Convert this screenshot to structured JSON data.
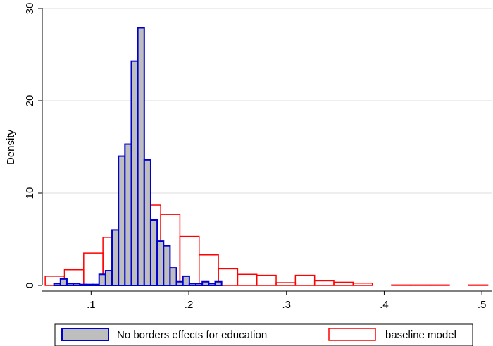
{
  "chart_data": {
    "type": "bar",
    "title": "",
    "xlabel": "",
    "ylabel": "Density",
    "xlim": [
      0.05,
      0.51
    ],
    "ylim": [
      0,
      30
    ],
    "xticks": [
      0.1,
      0.2,
      0.3,
      0.4,
      0.5
    ],
    "xtick_labels": [
      ".1",
      ".2",
      ".3",
      ".4",
      ".5"
    ],
    "yticks": [
      0,
      10,
      20,
      30
    ],
    "ytick_labels": [
      "0",
      "10",
      "20",
      "30"
    ],
    "grid": true,
    "legend_position": "bottom",
    "series": [
      {
        "name": "No borders effects for education",
        "fill": "#bebebe",
        "stroke": "#0000cd",
        "bin_width": 0.0066,
        "bins": [
          {
            "x0": 0.062,
            "y": 0.2
          },
          {
            "x0": 0.0686,
            "y": 0.7
          },
          {
            "x0": 0.0752,
            "y": 0.2
          },
          {
            "x0": 0.0818,
            "y": 0.2
          },
          {
            "x0": 0.0884,
            "y": 0.1
          },
          {
            "x0": 0.095,
            "y": 0.1
          },
          {
            "x0": 0.1016,
            "y": 0.1
          },
          {
            "x0": 0.1082,
            "y": 1.2
          },
          {
            "x0": 0.1148,
            "y": 1.6
          },
          {
            "x0": 0.1214,
            "y": 6.0
          },
          {
            "x0": 0.128,
            "y": 14.0
          },
          {
            "x0": 0.1346,
            "y": 15.3
          },
          {
            "x0": 0.1412,
            "y": 24.3
          },
          {
            "x0": 0.1478,
            "y": 27.9
          },
          {
            "x0": 0.1544,
            "y": 13.6
          },
          {
            "x0": 0.161,
            "y": 7.1
          },
          {
            "x0": 0.1676,
            "y": 4.8
          },
          {
            "x0": 0.1742,
            "y": 4.3
          },
          {
            "x0": 0.1808,
            "y": 1.9
          },
          {
            "x0": 0.1874,
            "y": 0.4
          },
          {
            "x0": 0.194,
            "y": 1.0
          },
          {
            "x0": 0.2006,
            "y": 0.2
          },
          {
            "x0": 0.2072,
            "y": 0.2
          },
          {
            "x0": 0.2138,
            "y": 0.4
          },
          {
            "x0": 0.2204,
            "y": 0.2
          },
          {
            "x0": 0.227,
            "y": 0.4
          }
        ]
      },
      {
        "name": "baseline model",
        "fill": "none",
        "stroke": "#ff0000",
        "bin_width": 0.0197,
        "bins": [
          {
            "x0": 0.053,
            "y": 1.0
          },
          {
            "x0": 0.0727,
            "y": 1.7
          },
          {
            "x0": 0.0924,
            "y": 3.5
          },
          {
            "x0": 0.1121,
            "y": 5.2
          },
          {
            "x0": 0.1318,
            "y": 6.8
          },
          {
            "x0": 0.1515,
            "y": 8.7
          },
          {
            "x0": 0.1712,
            "y": 7.7
          },
          {
            "x0": 0.1909,
            "y": 5.3
          },
          {
            "x0": 0.2106,
            "y": 3.3
          },
          {
            "x0": 0.2303,
            "y": 1.8
          },
          {
            "x0": 0.25,
            "y": 1.2
          },
          {
            "x0": 0.2697,
            "y": 1.1
          },
          {
            "x0": 0.2894,
            "y": 0.3
          },
          {
            "x0": 0.3091,
            "y": 1.1
          },
          {
            "x0": 0.3288,
            "y": 0.5
          },
          {
            "x0": 0.3485,
            "y": 0.35
          },
          {
            "x0": 0.3682,
            "y": 0.25
          },
          {
            "x0": 0.3879,
            "y": 0.0
          },
          {
            "x0": 0.4076,
            "y": 0.05
          },
          {
            "x0": 0.4273,
            "y": 0.05
          },
          {
            "x0": 0.447,
            "y": 0.05
          },
          {
            "x0": 0.4667,
            "y": 0.0
          },
          {
            "x0": 0.4864,
            "y": 0.05
          }
        ]
      }
    ]
  }
}
